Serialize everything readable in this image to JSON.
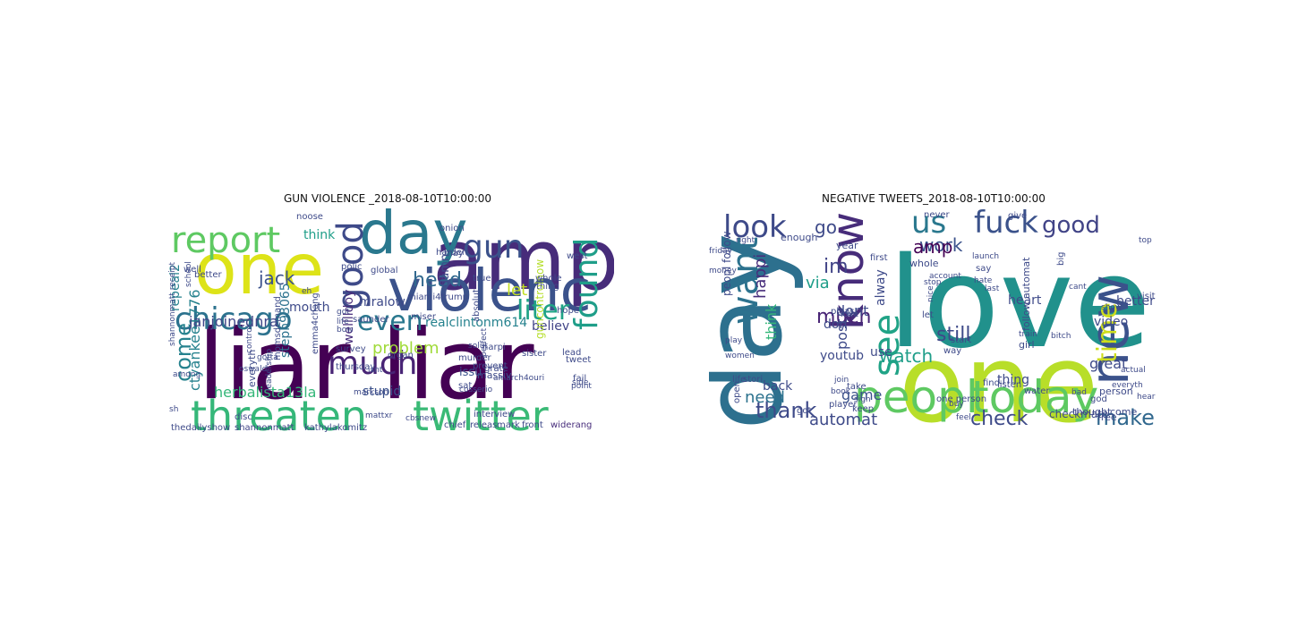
{
  "panels": [
    {
      "title": "GUN VIOLENCE _2018-08-10T10:00:00",
      "words": [
        {
          "text": "liar liar",
          "color": "#440154"
        },
        {
          "text": "amp",
          "color": "#472c7a"
        },
        {
          "text": "day",
          "color": "#2a788e"
        },
        {
          "text": "one",
          "color": "#dde318"
        },
        {
          "text": "violenc",
          "color": "#3b528b"
        },
        {
          "text": "threaten",
          "color": "#35b779"
        },
        {
          "text": "twitter",
          "color": "#3aba76"
        },
        {
          "text": "report",
          "color": "#5ec962"
        },
        {
          "text": "chicago",
          "color": "#2c728e"
        },
        {
          "text": "good",
          "color": "#3e4a89"
        },
        {
          "text": "gun",
          "color": "#3b528b"
        },
        {
          "text": "found",
          "color": "#1f9e89"
        },
        {
          "text": "much",
          "color": "#482475"
        },
        {
          "text": "even",
          "color": "#2a788e"
        },
        {
          "text": "liter",
          "color": "#20a386"
        },
        {
          "text": "head",
          "color": "#31688e"
        },
        {
          "text": "jack",
          "color": "#3b528b"
        },
        {
          "text": "problem",
          "color": "#a0da39"
        },
        {
          "text": "come",
          "color": "#26828e"
        },
        {
          "text": "herbalista13la",
          "color": "#35b779"
        },
        {
          "text": "realclintonm614",
          "color": "#26828e"
        },
        {
          "text": "ctyankee1776",
          "color": "#26828e"
        },
        {
          "text": "janjoinednra",
          "color": "#404688"
        },
        {
          "text": "steph93065",
          "color": "#2c728e"
        },
        {
          "text": "mouth",
          "color": "#3e4a89"
        },
        {
          "text": "let",
          "color": "#c2df23"
        },
        {
          "text": "believ",
          "color": "#414487"
        },
        {
          "text": "mralow",
          "color": "#3e4a89"
        },
        {
          "text": "welllldoy",
          "color": "#472d7b"
        },
        {
          "text": "think",
          "color": "#1f9e89"
        },
        {
          "text": "stupid",
          "color": "#3b528b"
        },
        {
          "text": "guncontrolnow",
          "color": "#b5de2b"
        },
        {
          "text": "repeal2",
          "color": "#26828e"
        },
        {
          "text": "damn",
          "color": "#3e4a89"
        },
        {
          "text": "issu",
          "color": "#3b528b"
        },
        {
          "text": "thedailyshow",
          "color": "#3e4a89"
        },
        {
          "text": "shannonmatt",
          "color": "#414487"
        },
        {
          "text": "kathylakomitz",
          "color": "#3e4a89"
        },
        {
          "text": "chief",
          "color": "#3e4a89"
        },
        {
          "text": "releas",
          "color": "#3e4a89"
        },
        {
          "text": "mark",
          "color": "#3e4a89"
        },
        {
          "text": "front",
          "color": "#3e4a89"
        },
        {
          "text": "widerang",
          "color": "#472d7b"
        },
        {
          "text": "interview",
          "color": "#3e4a89"
        },
        {
          "text": "cbsnew",
          "color": "#3e4a89"
        },
        {
          "text": "massiv",
          "color": "#3e4a89"
        },
        {
          "text": "survey",
          "color": "#3e4a89"
        },
        {
          "text": "thursday",
          "color": "#3e4a89"
        },
        {
          "text": "organ",
          "color": "#3e4a89"
        },
        {
          "text": "grate",
          "color": "#3e4a89"
        },
        {
          "text": "murder",
          "color": "#3e4a89"
        },
        {
          "text": "prevent",
          "color": "#3e4a89"
        },
        {
          "text": "leadership",
          "color": "#3e4a89"
        },
        {
          "text": "everyth",
          "color": "#3e4a89"
        },
        {
          "text": "better",
          "color": "#3e4a89"
        },
        {
          "text": "well",
          "color": "#3e4a89"
        },
        {
          "text": "school",
          "color": "#3e4a89"
        },
        {
          "text": "shannonmatt receipt",
          "color": "#3e4a89"
        },
        {
          "text": "miser",
          "color": "#3e4a89"
        },
        {
          "text": "saunder",
          "color": "#3e4a89"
        },
        {
          "text": "miami4trump",
          "color": "#3e4a89"
        },
        {
          "text": "emma4chang",
          "color": "#3e4a89"
        },
        {
          "text": "momsdemand",
          "color": "#3e4a89"
        },
        {
          "text": "global",
          "color": "#3e4a89"
        },
        {
          "text": "polic",
          "color": "#3e4a89"
        },
        {
          "text": "noose",
          "color": "#3e4a89"
        },
        {
          "text": "onion",
          "color": "#3e4a89"
        },
        {
          "text": "may",
          "color": "#3e4a89"
        },
        {
          "text": "west",
          "color": "#3e4a89"
        },
        {
          "text": "whole",
          "color": "#3e4a89"
        },
        {
          "text": "thing",
          "color": "#3e4a89"
        },
        {
          "text": "true",
          "color": "#3e4a89"
        },
        {
          "text": "harpi",
          "color": "#3e4a89"
        },
        {
          "text": "hope",
          "color": "#3e4a89"
        },
        {
          "text": "fail",
          "color": "#3e4a89"
        },
        {
          "text": "tweet",
          "color": "#3e4a89"
        },
        {
          "text": "side",
          "color": "#3e4a89"
        },
        {
          "text": "lead",
          "color": "#3e4a89"
        },
        {
          "text": "sat",
          "color": "#3e4a89"
        },
        {
          "text": "absolut",
          "color": "#3e4a89"
        },
        {
          "text": "perfect",
          "color": "#3e4a89"
        },
        {
          "text": "solut",
          "color": "#3e4a89"
        },
        {
          "text": "isnt",
          "color": "#3e4a89"
        },
        {
          "text": "disc",
          "color": "#3e4a89"
        },
        {
          "text": "gotta",
          "color": "#3e4a89"
        },
        {
          "text": "oswald",
          "color": "#3e4a89"
        },
        {
          "text": "got",
          "color": "#3e4a89"
        },
        {
          "text": "life",
          "color": "#3e4a89"
        },
        {
          "text": "bow",
          "color": "#3e4a89"
        },
        {
          "text": "eh",
          "color": "#3e4a89"
        },
        {
          "text": "among",
          "color": "#3e4a89"
        },
        {
          "text": "sh",
          "color": "#3e4a89"
        },
        {
          "text": "mattxr",
          "color": "#3e4a89"
        },
        {
          "text": "markson",
          "color": "#3e4a89"
        },
        {
          "text": "control",
          "color": "#3e4a89"
        },
        {
          "text": "harden",
          "color": "#3e4a89"
        },
        {
          "text": "sister",
          "color": "#3e4a89"
        },
        {
          "text": "point",
          "color": "#3e4a89"
        },
        {
          "text": "cosserio",
          "color": "#3e4a89"
        },
        {
          "text": "amarch4ouri",
          "color": "#3e4a89"
        }
      ]
    },
    {
      "title": "NEGATIVE TWEETS_2018-08-10T10:00:00",
      "words": [
        {
          "text": "love",
          "color": "#21918c"
        },
        {
          "text": "one",
          "color": "#b8de29"
        },
        {
          "text": "day",
          "color": "#2d708e"
        },
        {
          "text": "peopl",
          "color": "#5ec962"
        },
        {
          "text": "today",
          "color": "#5ec962"
        },
        {
          "text": "new",
          "color": "#3b528b"
        },
        {
          "text": "know",
          "color": "#472c7a"
        },
        {
          "text": "want",
          "color": "#2c728e"
        },
        {
          "text": "look",
          "color": "#3e4a89"
        },
        {
          "text": "us",
          "color": "#2a788e"
        },
        {
          "text": "fuck",
          "color": "#3b528b"
        },
        {
          "text": "good",
          "color": "#414487"
        },
        {
          "text": "see",
          "color": "#20a386"
        },
        {
          "text": "time",
          "color": "#cddd1c"
        },
        {
          "text": "thank",
          "color": "#3e4a89"
        },
        {
          "text": "make",
          "color": "#31688e"
        },
        {
          "text": "check",
          "color": "#3e4a89"
        },
        {
          "text": "automat",
          "color": "#3e4a89"
        },
        {
          "text": "watch",
          "color": "#1f9e89"
        },
        {
          "text": "still",
          "color": "#3e4a89"
        },
        {
          "text": "much",
          "color": "#482475"
        },
        {
          "text": "work",
          "color": "#3b528b"
        },
        {
          "text": "amp",
          "color": "#440154"
        },
        {
          "text": "im",
          "color": "#414487"
        },
        {
          "text": "go",
          "color": "#3e4a89"
        },
        {
          "text": "happi",
          "color": "#472d7b"
        },
        {
          "text": "need",
          "color": "#2c728e"
        },
        {
          "text": "via",
          "color": "#1f9e89"
        },
        {
          "text": "dont",
          "color": "#3e4a89"
        },
        {
          "text": "don",
          "color": "#3e4a89"
        },
        {
          "text": "use",
          "color": "#3e4a89"
        },
        {
          "text": "game",
          "color": "#3b528b"
        },
        {
          "text": "back",
          "color": "#3e4a89"
        },
        {
          "text": "youtub",
          "color": "#3e4a89"
        },
        {
          "text": "think",
          "color": "#35b779"
        },
        {
          "text": "post",
          "color": "#3e4a89"
        },
        {
          "text": "alway",
          "color": "#3e4a89"
        },
        {
          "text": "video",
          "color": "#3e4a89"
        },
        {
          "text": "great",
          "color": "#3e4a89"
        },
        {
          "text": "better",
          "color": "#3e4a89"
        },
        {
          "text": "heart",
          "color": "#3e4a89"
        },
        {
          "text": "thing",
          "color": "#3e4a89"
        },
        {
          "text": "person",
          "color": "#3e4a89"
        },
        {
          "text": "bad",
          "color": "#3e4a89"
        },
        {
          "text": "checkmate",
          "color": "#3e4a89"
        },
        {
          "text": "follow automat",
          "color": "#3e4a89"
        },
        {
          "text": "peopl follow",
          "color": "#3e4a89"
        },
        {
          "text": "year",
          "color": "#3e4a89"
        },
        {
          "text": "enough",
          "color": "#3e4a89"
        },
        {
          "text": "whole",
          "color": "#3e4a89"
        },
        {
          "text": "thought",
          "color": "#3e4a89"
        },
        {
          "text": "come",
          "color": "#3e4a89"
        },
        {
          "text": "friday",
          "color": "#3e4a89"
        },
        {
          "text": "money",
          "color": "#3e4a89"
        },
        {
          "text": "women",
          "color": "#3e4a89"
        },
        {
          "text": "life",
          "color": "#3e4a89"
        },
        {
          "text": "got",
          "color": "#3e4a89"
        },
        {
          "text": "take",
          "color": "#3e4a89"
        },
        {
          "text": "let",
          "color": "#3e4a89"
        },
        {
          "text": "way",
          "color": "#3e4a89"
        },
        {
          "text": "start",
          "color": "#3e4a89"
        },
        {
          "text": "pleas",
          "color": "#3e4a89"
        },
        {
          "text": "first",
          "color": "#3e4a89"
        },
        {
          "text": "never",
          "color": "#3e4a89"
        },
        {
          "text": "give",
          "color": "#3e4a89"
        },
        {
          "text": "girl",
          "color": "#3e4a89"
        },
        {
          "text": "train",
          "color": "#3e4a89"
        },
        {
          "text": "bitch",
          "color": "#3e4a89"
        },
        {
          "text": "say",
          "color": "#3e4a89"
        },
        {
          "text": "hate",
          "color": "#3e4a89"
        },
        {
          "text": "nice",
          "color": "#3e4a89"
        },
        {
          "text": "stop",
          "color": "#3e4a89"
        },
        {
          "text": "book",
          "color": "#3e4a89"
        },
        {
          "text": "join",
          "color": "#3e4a89"
        },
        {
          "text": "keep",
          "color": "#3e4a89"
        },
        {
          "text": "find",
          "color": "#3e4a89"
        },
        {
          "text": "listen",
          "color": "#3e4a89"
        },
        {
          "text": "buy",
          "color": "#3e4a89"
        },
        {
          "text": "god",
          "color": "#3e4a89"
        },
        {
          "text": "free",
          "color": "#3e4a89"
        },
        {
          "text": "visit",
          "color": "#3e4a89"
        },
        {
          "text": "hear",
          "color": "#3e4a89"
        },
        {
          "text": "open",
          "color": "#3e4a89"
        },
        {
          "text": "play",
          "color": "#3e4a89"
        },
        {
          "text": "player",
          "color": "#3e4a89"
        },
        {
          "text": "stori",
          "color": "#3e4a89"
        },
        {
          "text": "lose",
          "color": "#3e4a89"
        },
        {
          "text": "sign",
          "color": "#3e4a89"
        },
        {
          "text": "big",
          "color": "#3e4a89"
        },
        {
          "text": "water",
          "color": "#3e4a89"
        },
        {
          "text": "everyth",
          "color": "#3e4a89"
        },
        {
          "text": "account",
          "color": "#3e4a89"
        },
        {
          "text": "launch",
          "color": "#3e4a89"
        },
        {
          "text": "one person",
          "color": "#3e4a89"
        },
        {
          "text": "feel",
          "color": "#3e4a89"
        },
        {
          "text": "actual",
          "color": "#3e4a89"
        },
        {
          "text": "top",
          "color": "#3e4a89"
        },
        {
          "text": "last",
          "color": "#3e4a89"
        },
        {
          "text": "show",
          "color": "#3e4a89"
        },
        {
          "text": "cant",
          "color": "#3e4a89"
        },
        {
          "text": "right",
          "color": "#3e4a89"
        }
      ]
    }
  ]
}
